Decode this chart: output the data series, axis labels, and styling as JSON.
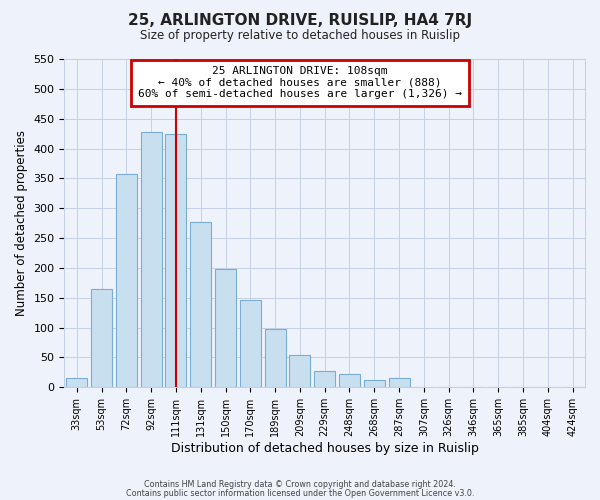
{
  "title": "25, ARLINGTON DRIVE, RUISLIP, HA4 7RJ",
  "subtitle": "Size of property relative to detached houses in Ruislip",
  "xlabel": "Distribution of detached houses by size in Ruislip",
  "ylabel": "Number of detached properties",
  "bar_labels": [
    "33sqm",
    "53sqm",
    "72sqm",
    "92sqm",
    "111sqm",
    "131sqm",
    "150sqm",
    "170sqm",
    "189sqm",
    "209sqm",
    "229sqm",
    "248sqm",
    "268sqm",
    "287sqm",
    "307sqm",
    "326sqm",
    "346sqm",
    "365sqm",
    "385sqm",
    "404sqm",
    "424sqm"
  ],
  "bar_values": [
    15,
    165,
    358,
    428,
    425,
    277,
    198,
    147,
    97,
    55,
    28,
    23,
    13,
    15,
    0,
    1,
    0,
    0,
    0,
    0,
    1
  ],
  "bar_color": "#c8dff0",
  "bar_edge_color": "#7aadd4",
  "vline_color": "#cc0000",
  "annotation_title": "25 ARLINGTON DRIVE: 108sqm",
  "annotation_line1": "← 40% of detached houses are smaller (888)",
  "annotation_line2": "60% of semi-detached houses are larger (1,326) →",
  "annotation_box_color": "#ffffff",
  "annotation_box_edge": "#cc0000",
  "ylim": [
    0,
    550
  ],
  "yticks": [
    0,
    50,
    100,
    150,
    200,
    250,
    300,
    350,
    400,
    450,
    500,
    550
  ],
  "footer1": "Contains HM Land Registry data © Crown copyright and database right 2024.",
  "footer2": "Contains public sector information licensed under the Open Government Licence v3.0.",
  "bg_color": "#eef2fb",
  "plot_bg_color": "#eef2fb",
  "grid_color": "#c5d0e8"
}
